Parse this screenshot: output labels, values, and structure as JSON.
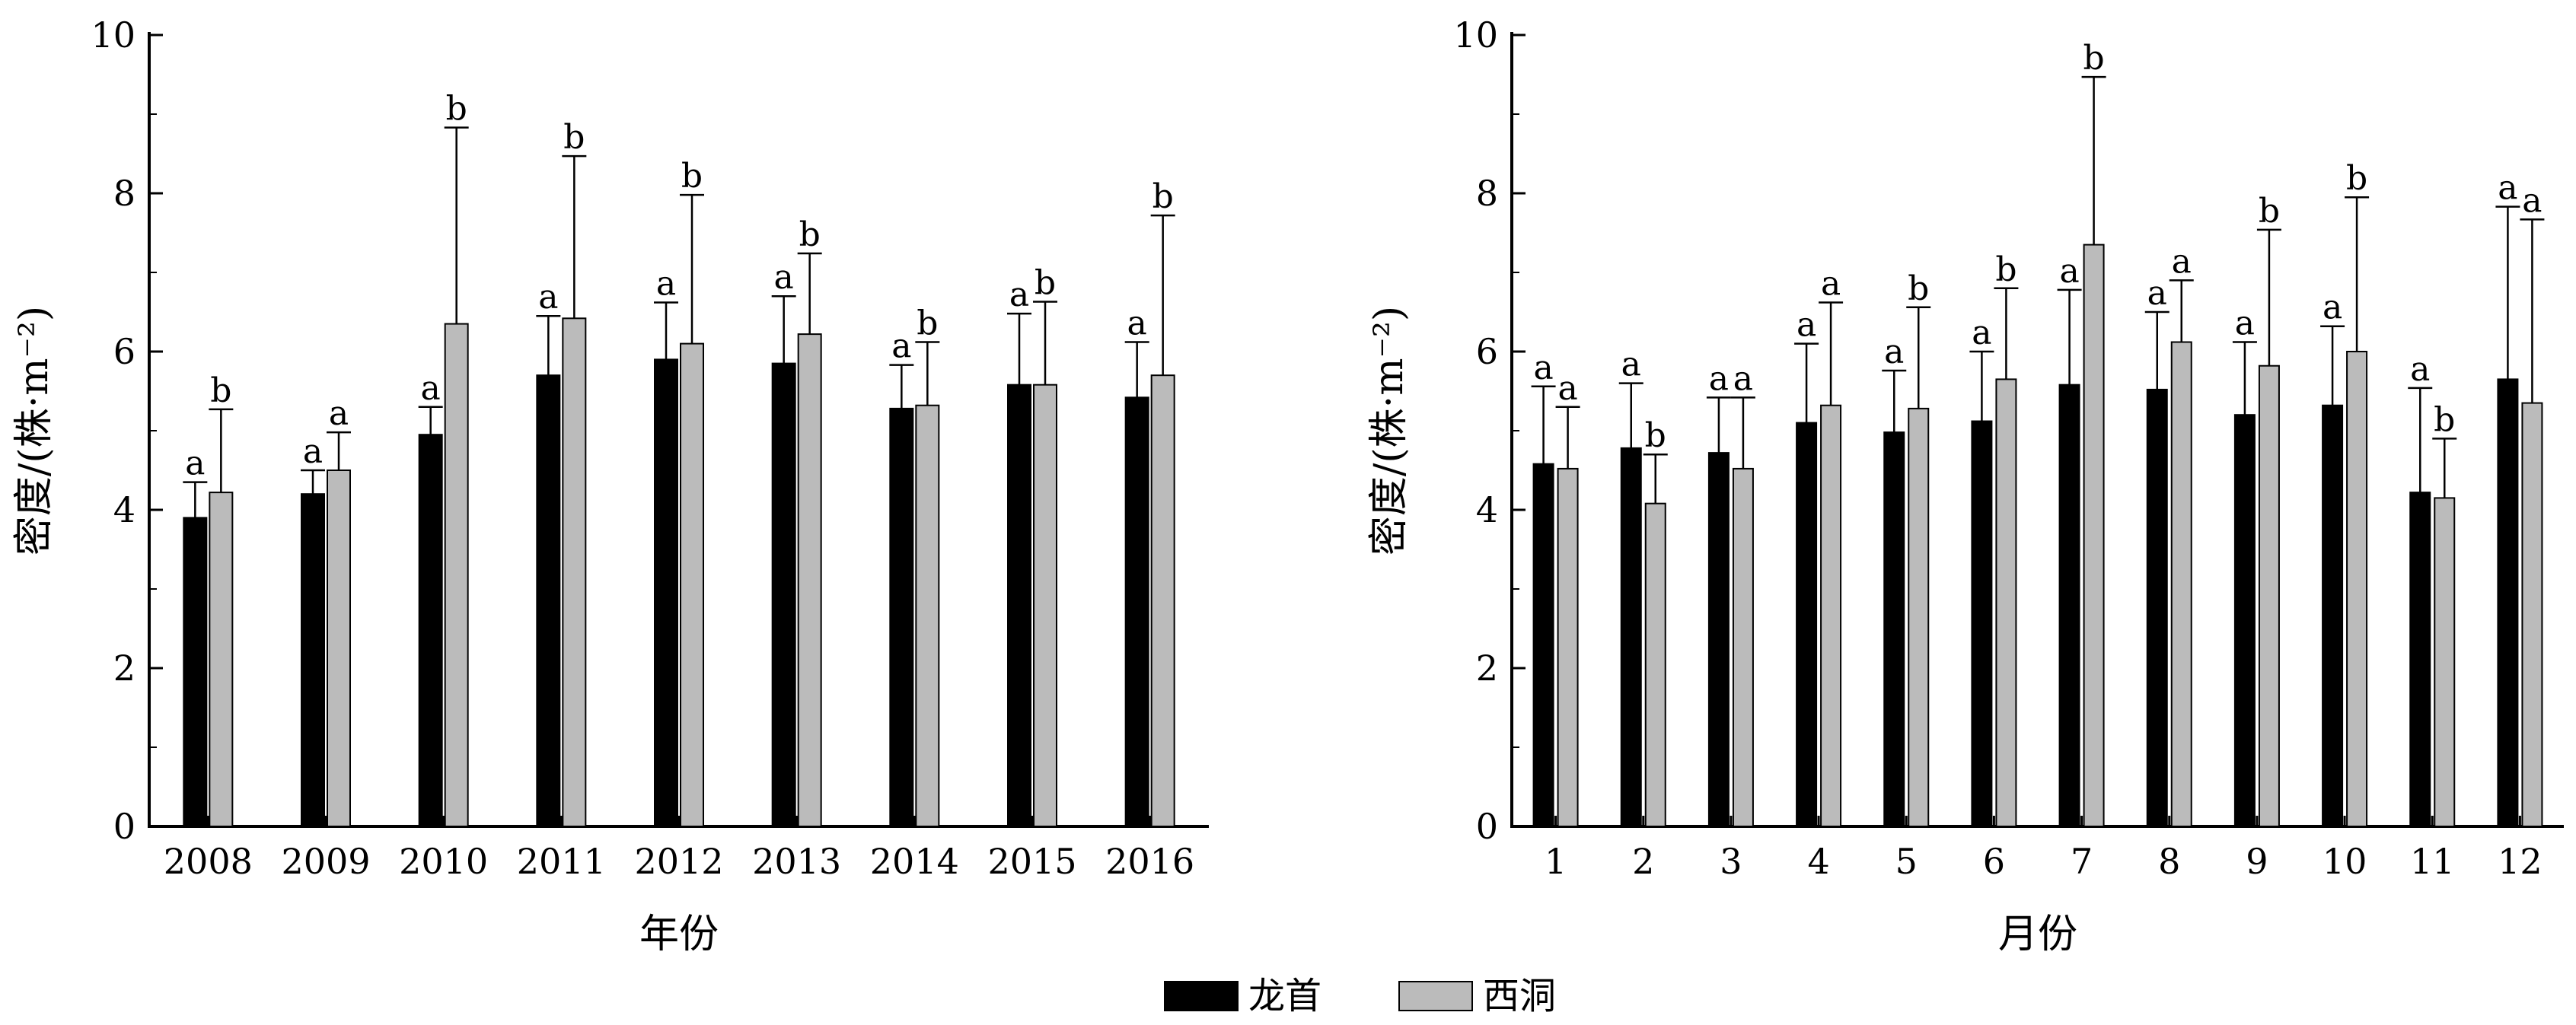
{
  "chart_data": [
    {
      "type": "bar",
      "xlabel": "年份",
      "ylabel": "密度/(株·m⁻²)",
      "ylim": [
        0,
        10
      ],
      "yticks": [
        0,
        2,
        4,
        6,
        8,
        10
      ],
      "grid": false,
      "categories": [
        "2008",
        "2009",
        "2010",
        "2011",
        "2012",
        "2013",
        "2014",
        "2015",
        "2016"
      ],
      "series": [
        {
          "name": "龙首",
          "color": "#000000",
          "values": [
            3.9,
            4.2,
            4.95,
            5.7,
            5.9,
            5.85,
            5.28,
            5.58,
            5.42
          ],
          "error": [
            0.45,
            0.3,
            0.35,
            0.75,
            0.72,
            0.85,
            0.55,
            0.9,
            0.7
          ],
          "labels": [
            "a",
            "a",
            "a",
            "a",
            "a",
            "a",
            "a",
            "a",
            "a"
          ]
        },
        {
          "name": "西洞",
          "color": "#bbbbbb",
          "values": [
            4.22,
            4.5,
            6.35,
            6.42,
            6.1,
            6.22,
            5.32,
            5.58,
            5.7
          ],
          "error": [
            1.05,
            0.48,
            2.48,
            2.05,
            1.88,
            1.02,
            0.8,
            1.05,
            2.02
          ],
          "labels": [
            "b",
            "a",
            "b",
            "b",
            "b",
            "b",
            "b",
            "b",
            "b"
          ]
        }
      ]
    },
    {
      "type": "bar",
      "xlabel": "月份",
      "ylabel": "密度/(株·m⁻²)",
      "ylim": [
        0,
        10
      ],
      "yticks": [
        0,
        2,
        4,
        6,
        8,
        10
      ],
      "grid": false,
      "categories": [
        "1",
        "2",
        "3",
        "4",
        "5",
        "6",
        "7",
        "8",
        "9",
        "10",
        "11",
        "12"
      ],
      "series": [
        {
          "name": "龙首",
          "color": "#000000",
          "values": [
            4.58,
            4.78,
            4.72,
            5.1,
            4.98,
            5.12,
            5.58,
            5.52,
            5.2,
            5.32,
            4.22,
            5.65
          ],
          "error": [
            0.98,
            0.82,
            0.7,
            1.0,
            0.78,
            0.88,
            1.2,
            0.98,
            0.92,
            1.0,
            1.32,
            2.18
          ],
          "labels": [
            "a",
            "a",
            "a",
            "a",
            "a",
            "a",
            "a",
            "a",
            "a",
            "a",
            "a",
            "a"
          ]
        },
        {
          "name": "西洞",
          "color": "#bbbbbb",
          "values": [
            4.52,
            4.08,
            4.52,
            5.32,
            5.28,
            5.65,
            7.35,
            6.12,
            5.82,
            6.0,
            4.15,
            5.35
          ],
          "error": [
            0.78,
            0.62,
            0.9,
            1.3,
            1.28,
            1.15,
            2.12,
            0.78,
            1.72,
            1.95,
            0.75,
            2.32
          ],
          "labels": [
            "a",
            "b",
            "a",
            "a",
            "b",
            "b",
            "b",
            "a",
            "b",
            "b",
            "b",
            "a"
          ]
        }
      ]
    }
  ],
  "legend": {
    "position": "bottom-center",
    "items": [
      {
        "label": "龙首",
        "color": "#000000"
      },
      {
        "label": "西洞",
        "color": "#bbbbbb"
      }
    ]
  }
}
